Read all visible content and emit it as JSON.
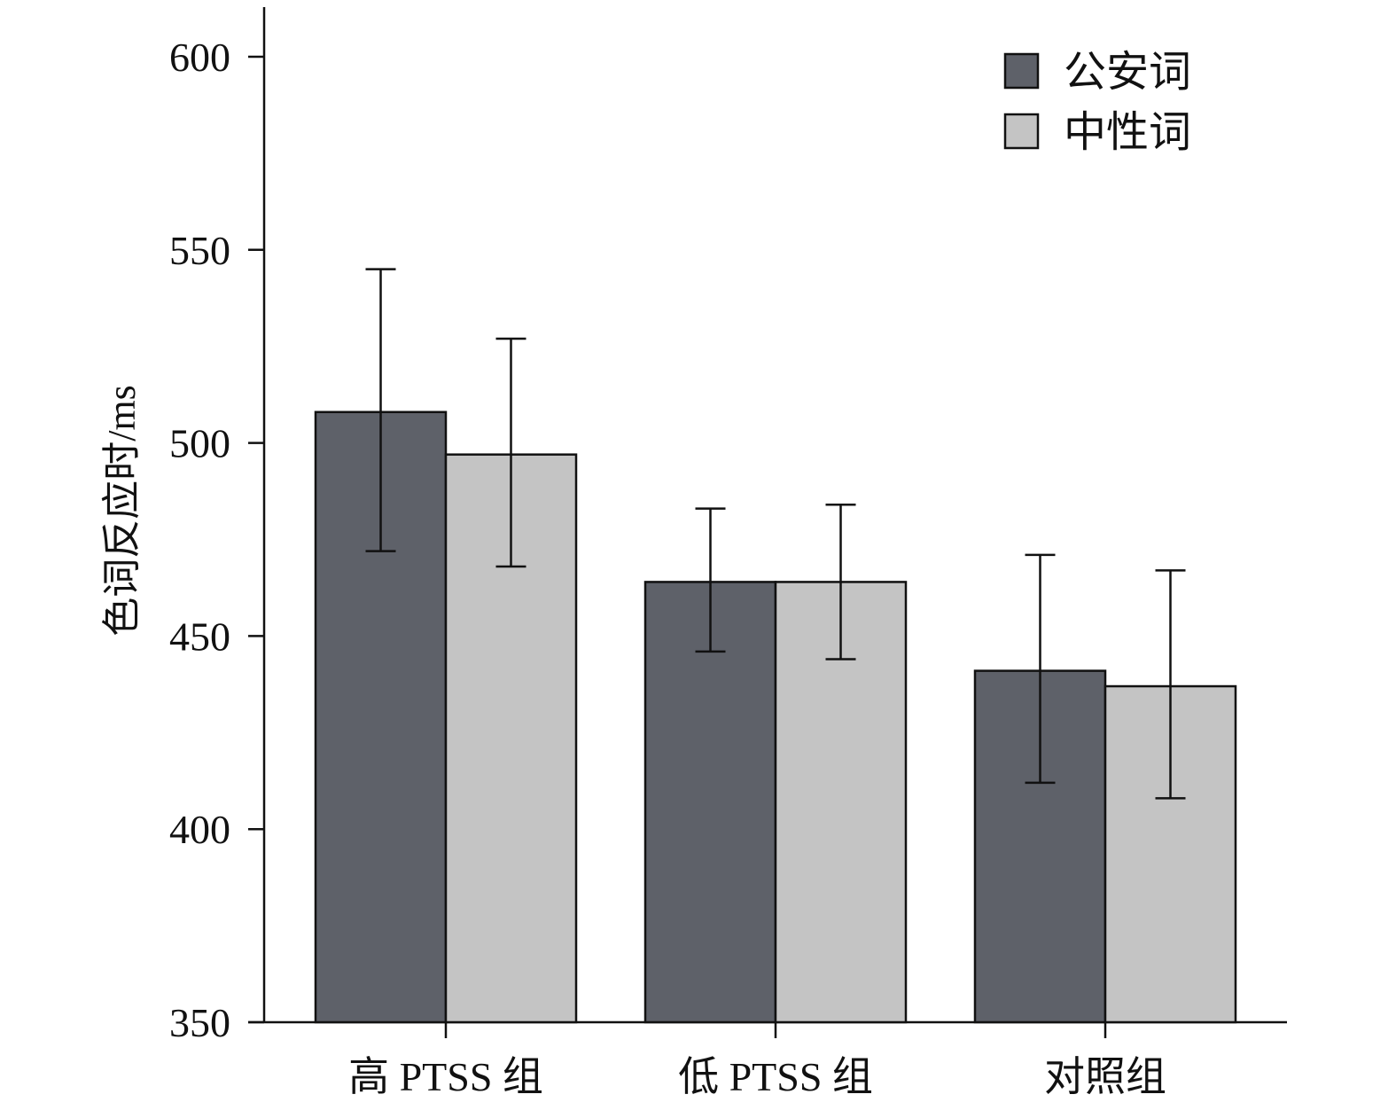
{
  "chart_data": {
    "type": "bar",
    "categories": [
      "高 PTSS 组",
      "低 PTSS 组",
      "对照组"
    ],
    "series": [
      {
        "name": "公安词",
        "color": "#5e6169",
        "values": [
          508,
          464,
          441
        ],
        "error_low": [
          472,
          446,
          412
        ],
        "error_high": [
          545,
          483,
          471
        ]
      },
      {
        "name": "中性词",
        "color": "#c4c4c4",
        "values": [
          497,
          464,
          437
        ],
        "error_low": [
          468,
          444,
          408
        ],
        "error_high": [
          527,
          484,
          467
        ]
      }
    ],
    "ylabel": "色词反应时/ms",
    "xlabel": "",
    "title": "",
    "ylim": [
      350,
      600
    ],
    "yticks": [
      350,
      400,
      450,
      500,
      550,
      600
    ],
    "grid": false,
    "legend_position": "top-right"
  }
}
